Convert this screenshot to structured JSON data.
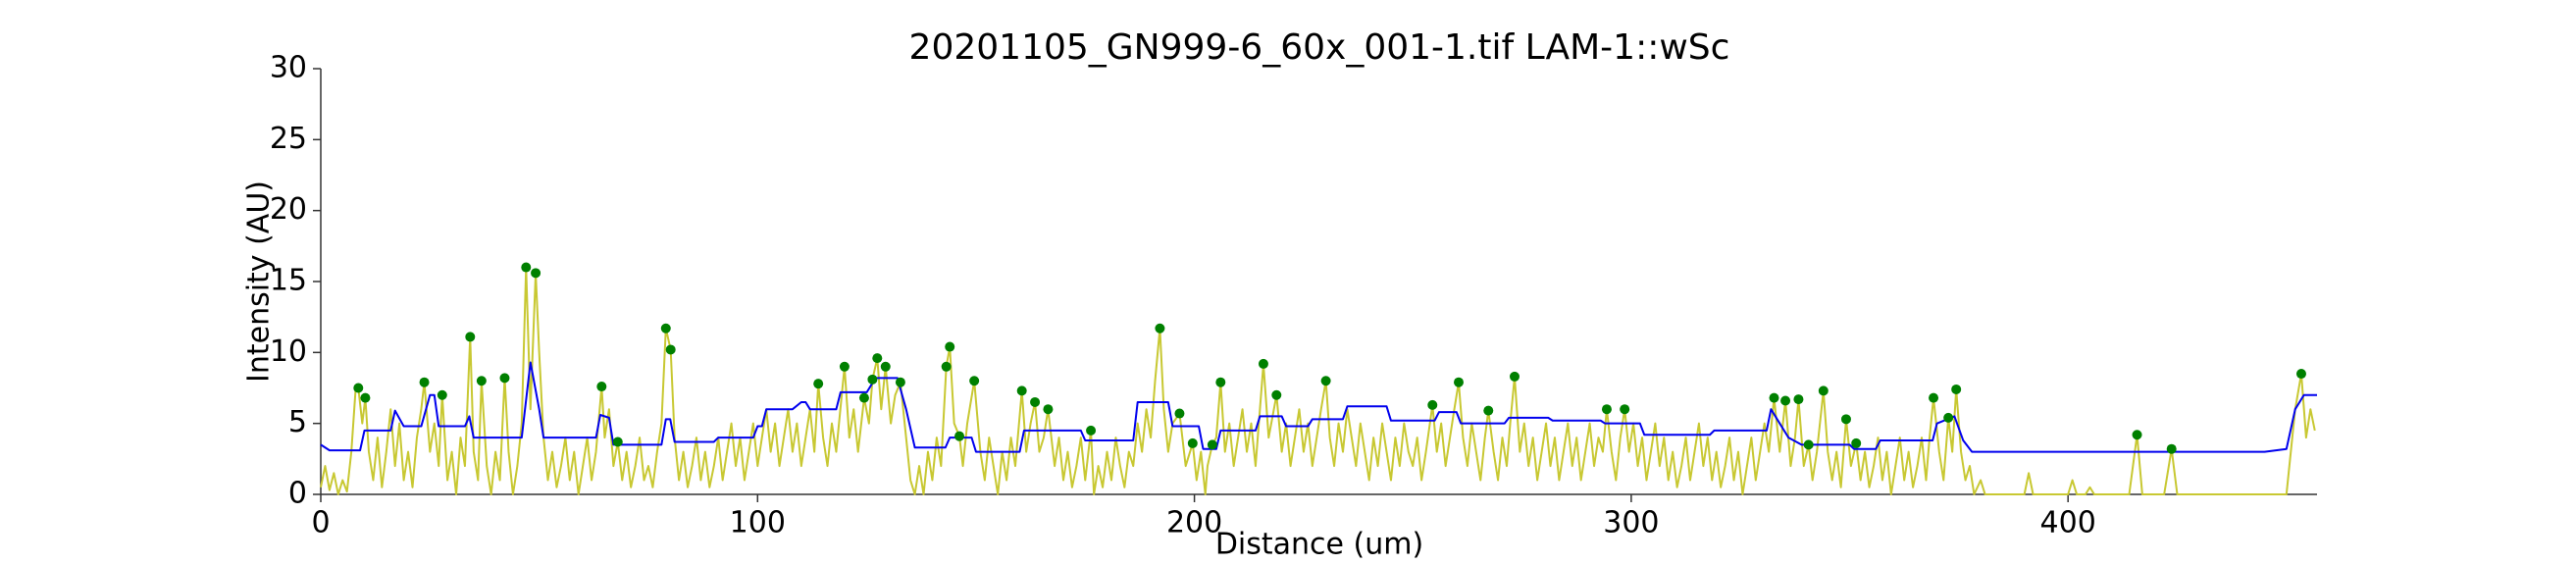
{
  "chart_data": {
    "type": "line",
    "title": "20201105_GN999-6_60x_001-1.tif LAM-1::wSc",
    "x_label": "Distance (um)",
    "y_label": "Intensity (AU)",
    "xlim": [
      0,
      457
    ],
    "ylim": [
      0,
      30
    ],
    "xticks": [
      0,
      100,
      200,
      300,
      400
    ],
    "yticks": [
      0,
      5,
      10,
      15,
      20,
      25,
      30
    ],
    "grid": false,
    "series": [
      {
        "type": "line",
        "color": "#c8c832",
        "x": [
          0,
          1,
          2,
          3,
          4,
          5,
          6,
          7,
          8,
          8.6,
          9.5,
          10.2,
          11,
          12,
          13,
          14,
          15,
          16,
          17,
          18,
          19,
          20,
          21,
          22,
          23,
          23.7,
          25,
          26,
          27,
          27.8,
          29,
          30,
          31,
          32,
          33,
          34.2,
          35,
          36,
          36.8,
          38,
          39,
          40,
          41,
          42.1,
          43,
          44,
          45,
          46,
          47,
          48,
          49.2,
          50,
          51,
          52,
          53,
          54,
          55,
          56,
          57,
          58,
          59,
          60,
          61,
          62,
          63,
          64.3,
          65,
          66,
          67,
          68,
          69,
          70,
          71,
          72,
          73,
          74,
          75,
          76,
          77,
          78,
          79,
          80.1,
          81,
          82,
          83,
          84,
          85,
          86,
          87,
          88,
          89,
          90,
          91,
          92,
          93,
          94,
          95,
          96,
          97,
          98,
          99,
          100,
          101,
          102,
          103,
          104,
          105,
          106,
          107,
          108,
          109,
          110,
          111,
          112,
          113,
          113.9,
          115,
          116,
          117,
          118,
          119.9,
          121,
          122,
          123,
          124.4,
          125.5,
          126.3,
          127.4,
          128.3,
          129.3,
          130.5,
          131.5,
          132.7,
          134,
          135,
          136,
          137,
          138,
          139,
          140,
          141,
          142,
          143.2,
          144,
          145,
          146.2,
          147,
          148,
          149.6,
          151,
          152,
          153,
          154,
          155,
          156,
          157,
          158,
          159,
          160.5,
          161.5,
          162.5,
          163.5,
          164.5,
          165.5,
          166.5,
          168,
          169,
          170,
          171,
          172,
          173,
          174,
          175,
          176.3,
          177,
          178,
          179,
          180,
          181,
          182,
          183,
          184,
          185,
          186,
          187,
          188,
          189,
          190,
          191,
          192.1,
          193,
          194,
          195,
          196.6,
          198,
          199.6,
          200.5,
          201.5,
          202.5,
          203,
          204.1,
          205,
          206,
          207,
          208,
          209,
          210,
          211,
          212,
          213,
          214,
          215.8,
          217,
          218.8,
          220,
          221,
          222,
          223,
          224,
          225,
          226,
          227,
          228,
          229,
          230.1,
          231,
          232,
          233,
          234,
          235,
          236,
          237,
          238,
          239,
          240,
          241,
          242,
          243,
          244,
          245,
          246,
          247,
          248,
          249,
          250,
          251,
          252,
          253,
          254.5,
          255.5,
          256.5,
          257.5,
          258.5,
          259.5,
          260.5,
          261.5,
          262.5,
          263.5,
          264.5,
          265.5,
          266.5,
          267.3,
          268.5,
          269.5,
          270.5,
          271.5,
          272.3,
          273.3,
          274.5,
          275.5,
          276.5,
          277.5,
          278.5,
          279.5,
          280.5,
          281.5,
          282.5,
          283.5,
          284.5,
          285.5,
          286.5,
          287.5,
          288.5,
          289.5,
          290.5,
          291.5,
          292.5,
          293.5,
          294.4,
          295.5,
          296.5,
          297.5,
          298.5,
          299.5,
          300.5,
          301.5,
          302.5,
          303.5,
          304.5,
          305.5,
          306.5,
          307.5,
          308.5,
          309.5,
          310.5,
          311.5,
          312.5,
          313.5,
          314.5,
          315.5,
          316.5,
          317.5,
          318.5,
          319.5,
          320.5,
          321.5,
          322.5,
          323.5,
          324.5,
          325.5,
          326.5,
          327.5,
          328.5,
          329.5,
          330.5,
          331.5,
          332.7,
          334,
          335.3,
          336.5,
          337.5,
          338.3,
          339.5,
          340.6,
          341.5,
          342.5,
          343.2,
          344,
          345,
          346,
          347,
          348,
          349.2,
          350.3,
          351.5,
          352.5,
          353.5,
          354.5,
          355.5,
          356.5,
          357.5,
          358.5,
          359.5,
          360.5,
          361.5,
          362.5,
          363.5,
          364.5,
          365.5,
          366.5,
          367.5,
          368.3,
          369.2,
          370.5,
          371.5,
          372.6,
          373.5,
          374.4,
          375.5,
          376.5,
          377.5,
          378.5,
          380,
          381,
          390,
          391,
          392,
          400,
          401,
          402,
          404,
          405,
          406,
          414,
          415.8,
          417,
          422,
          423.7,
          425,
          450,
          451,
          452,
          453.4,
          454.5,
          455.5,
          456.5
        ],
        "values": [
          0.5,
          2,
          0.3,
          1.5,
          0,
          1,
          0.2,
          3,
          7.5,
          7.5,
          5,
          6.8,
          3,
          1,
          4,
          0.5,
          3,
          6,
          2,
          5,
          1,
          3,
          0.5,
          4,
          6,
          7.9,
          3,
          5,
          2,
          7,
          1,
          3,
          0,
          4,
          2,
          11.1,
          3,
          1,
          8,
          2,
          0,
          3,
          1,
          8.2,
          3,
          0,
          2,
          5,
          16,
          6,
          15.6,
          10,
          4,
          1,
          3,
          0.5,
          2,
          4,
          1,
          3,
          0,
          2,
          4,
          1,
          3,
          7.6,
          4,
          6,
          2,
          3.7,
          1,
          3,
          0.5,
          2,
          4,
          1,
          2,
          0.5,
          3,
          5,
          11.7,
          10.2,
          4,
          1,
          3,
          0.5,
          2,
          4,
          1,
          3,
          0.5,
          2,
          4,
          1,
          3,
          5,
          2,
          4,
          1,
          3,
          5,
          2,
          4,
          6,
          3,
          5,
          2,
          4,
          6,
          3,
          5,
          2,
          4,
          6,
          3,
          7.8,
          4,
          2,
          5,
          3,
          9,
          4,
          6,
          3,
          6.8,
          5,
          8.1,
          9.6,
          6,
          9,
          5,
          7,
          7.9,
          4,
          1,
          0,
          2,
          0,
          3,
          1,
          4,
          2,
          9,
          10.4,
          5,
          4.1,
          2,
          5,
          8,
          3,
          1,
          4,
          2,
          0,
          3,
          1,
          4,
          2,
          7.3,
          3,
          5,
          6.5,
          3,
          4,
          6,
          2,
          4,
          1,
          3,
          0.5,
          2,
          4,
          1,
          4.5,
          0,
          2,
          0.5,
          3,
          1,
          4,
          2,
          0.5,
          3,
          2,
          5,
          3,
          6,
          4,
          8,
          11.7,
          6,
          3,
          5,
          5.7,
          2,
          3.6,
          1,
          3,
          0,
          2,
          3.5,
          4,
          7.9,
          3,
          5,
          2,
          4,
          6,
          3,
          5,
          2,
          9.2,
          4,
          7,
          3,
          5,
          2,
          4,
          6,
          3,
          5,
          2,
          4,
          6,
          8,
          4,
          2,
          5,
          3,
          6,
          4,
          2,
          5,
          3,
          1,
          4,
          2,
          5,
          3,
          1,
          4,
          2,
          5,
          3,
          2,
          4,
          1,
          3,
          6.3,
          3,
          5,
          2,
          4,
          6,
          7.9,
          4,
          2,
          5,
          3,
          1,
          4,
          5.9,
          3,
          1,
          4,
          2,
          5,
          8.3,
          3,
          5,
          2,
          4,
          1,
          3,
          5,
          2,
          4,
          1,
          3,
          5,
          2,
          4,
          1,
          3,
          5,
          2,
          4,
          3,
          6,
          3,
          1,
          4,
          6,
          3,
          5,
          2,
          4,
          1,
          3,
          5,
          2,
          4,
          1,
          3,
          0.5,
          2,
          4,
          1,
          3,
          5,
          2,
          4,
          1,
          3,
          0.5,
          2,
          4,
          1,
          3,
          0,
          2,
          4,
          1,
          3,
          5,
          3,
          6.8,
          3,
          6.6,
          2,
          4,
          6.7,
          2,
          3.5,
          1,
          3,
          5,
          7.3,
          3,
          1,
          3,
          0.5,
          5.3,
          2,
          3.6,
          1,
          3,
          0.5,
          2,
          4,
          1,
          3,
          0,
          2,
          4,
          1,
          3,
          0.5,
          2,
          4,
          1,
          4,
          6.8,
          3,
          1,
          5.4,
          3,
          7.4,
          3,
          1,
          2,
          0,
          1,
          0,
          0,
          1.5,
          0,
          0,
          1,
          0,
          0,
          0.5,
          0,
          0,
          4.2,
          0,
          0,
          3.2,
          0,
          0,
          3,
          6,
          8.5,
          4,
          6,
          4.5
        ]
      },
      {
        "type": "line",
        "color": "#0000ee",
        "x": [
          0,
          2,
          9,
          10,
          16,
          17,
          19,
          23,
          25,
          26,
          27,
          33,
          34,
          35,
          46,
          48,
          50,
          51,
          63,
          64,
          66,
          67,
          78,
          79,
          80,
          81,
          90,
          91,
          99,
          100,
          101,
          102,
          108,
          110,
          111,
          112,
          118,
          119,
          125,
          127,
          132,
          134,
          136,
          143,
          144,
          149,
          150,
          160,
          161,
          174,
          175,
          186,
          187,
          194,
          195,
          201,
          202,
          205,
          206,
          214,
          215,
          220,
          221,
          226,
          227,
          234,
          235,
          244,
          245,
          255,
          256,
          260,
          261,
          271,
          272,
          281,
          282,
          293,
          294,
          302,
          303,
          318,
          319,
          331,
          332,
          334,
          336,
          339,
          350,
          351,
          356,
          357,
          369,
          370,
          374,
          376,
          378,
          445,
          450,
          452,
          454,
          457
        ],
        "values": [
          3.5,
          3.1,
          3.1,
          4.5,
          4.5,
          5.9,
          4.8,
          4.8,
          7,
          7,
          4.8,
          4.8,
          5.5,
          4,
          4,
          9.3,
          6,
          4,
          4,
          5.6,
          5.4,
          3.5,
          3.5,
          5.3,
          5.3,
          3.7,
          3.7,
          4,
          4,
          4.8,
          4.8,
          6,
          6,
          6.5,
          6.5,
          6,
          6,
          7.2,
          7.2,
          8.2,
          8.2,
          6,
          3.3,
          3.3,
          4,
          4,
          3,
          3,
          4.5,
          4.5,
          3.8,
          3.8,
          6.5,
          6.5,
          4.8,
          4.8,
          3.2,
          3.2,
          4.5,
          4.5,
          5.5,
          5.5,
          4.8,
          4.8,
          5.3,
          5.3,
          6.2,
          6.2,
          5.2,
          5.2,
          5.8,
          5.8,
          5,
          5,
          5.4,
          5.4,
          5.2,
          5.2,
          5,
          5,
          4.2,
          4.2,
          4.5,
          4.5,
          6,
          5,
          4,
          3.5,
          3.5,
          3.2,
          3.2,
          3.8,
          3.8,
          5,
          5.5,
          3.8,
          3,
          3,
          3.2,
          6,
          7,
          7
        ]
      },
      {
        "type": "scatter",
        "color": "#008000",
        "x": [
          8.6,
          10.2,
          23.7,
          27.8,
          34.2,
          36.8,
          42.1,
          47,
          49.2,
          64.3,
          68,
          79,
          80.1,
          113.9,
          119.9,
          124.4,
          126.3,
          127.4,
          129.3,
          132.7,
          143.2,
          144,
          146.2,
          149.6,
          160.5,
          163.5,
          166.5,
          176.3,
          192.1,
          196.6,
          199.6,
          204.1,
          206,
          215.8,
          218.8,
          230.1,
          254.5,
          260.5,
          267.3,
          273.3,
          294.4,
          298.5,
          332.7,
          335.3,
          338.3,
          340.6,
          344,
          349.2,
          351.5,
          369.2,
          372.6,
          374.4,
          415.8,
          423.7,
          453.4
        ],
        "values": [
          7.5,
          6.8,
          7.9,
          7,
          11.1,
          8,
          8.2,
          16,
          15.6,
          7.6,
          3.7,
          11.7,
          10.2,
          7.8,
          9,
          6.8,
          8.1,
          9.6,
          9,
          7.9,
          9,
          10.4,
          4.1,
          8,
          7.3,
          6.5,
          6,
          4.5,
          11.7,
          5.7,
          3.6,
          3.5,
          7.9,
          9.2,
          7,
          8,
          6.3,
          7.9,
          5.9,
          8.3,
          6,
          6,
          6.8,
          6.6,
          6.7,
          3.5,
          7.3,
          5.3,
          3.6,
          6.8,
          5.4,
          7.4,
          4.2,
          3.2,
          8.5
        ]
      }
    ]
  }
}
